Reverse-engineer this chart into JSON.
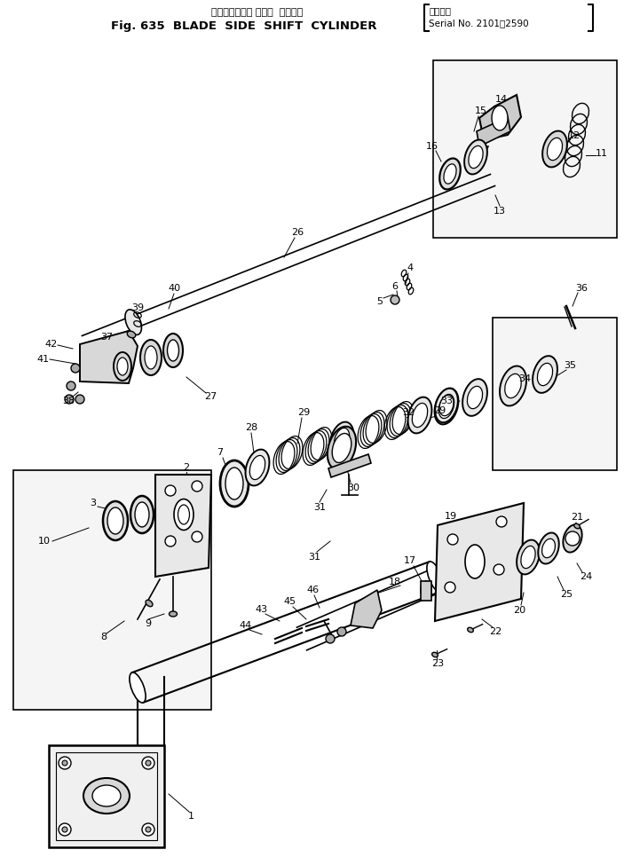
{
  "title_jp": "ブレードサイド シフト  シリンダ",
  "title_serial_label": "適用号機",
  "title_en": "Fig. 635  BLADE  SIDE  SHIFT  CYLINDER",
  "title_serial": "Serial No. 2101！2590",
  "bg_color": "#ffffff",
  "lc": "#000000",
  "tc": "#000000",
  "fig_width": 7.03,
  "fig_height": 9.75,
  "dpi": 100
}
